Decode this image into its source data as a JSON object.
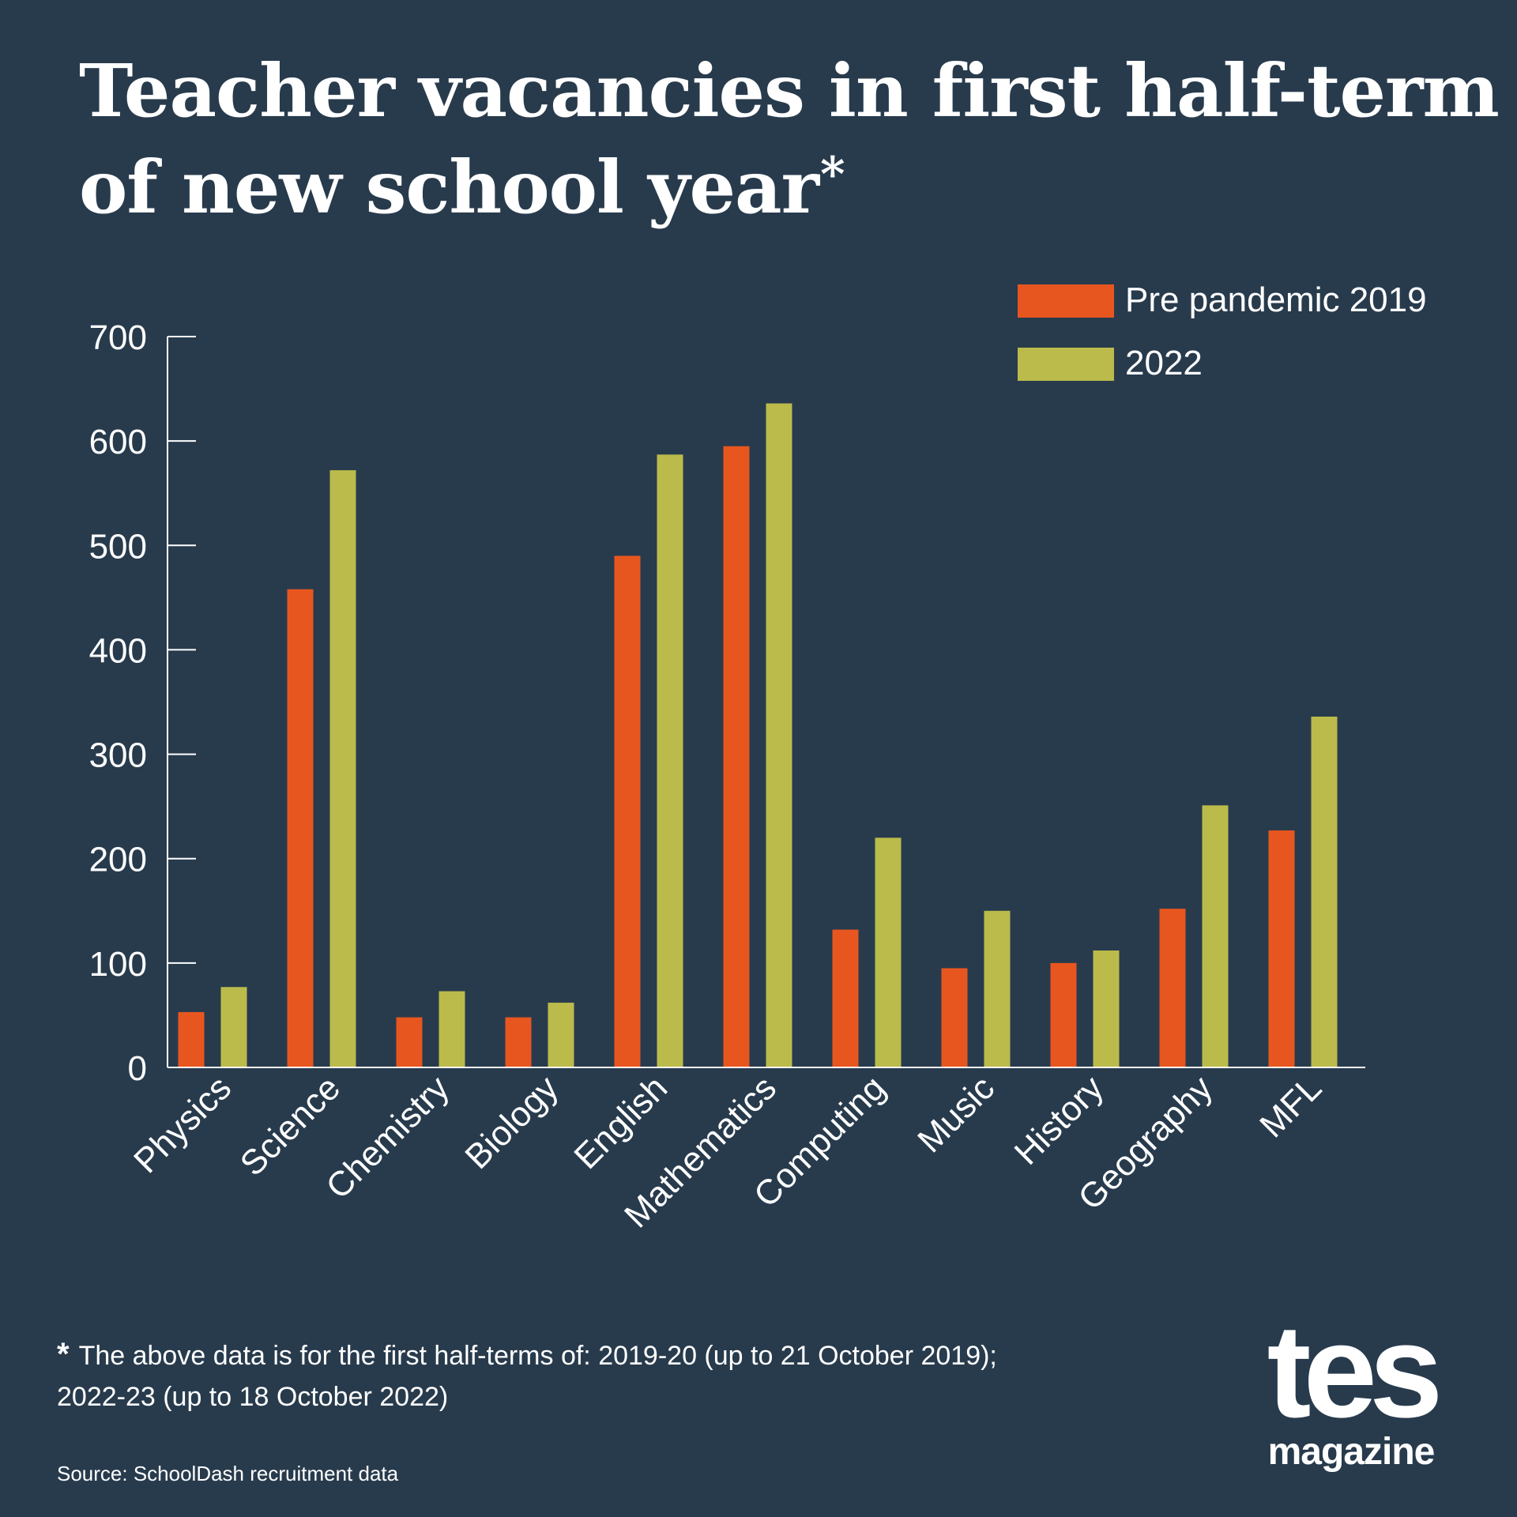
{
  "title_lines": [
    "Teacher vacancies in first half-term",
    "of new school year"
  ],
  "title_marker": "*",
  "footnote": {
    "marker": "*",
    "line1": "The above data is for the first half-terms of: 2019-20 (up to 21 October 2019);",
    "line2": "2022-23 (up to 18 October 2022)"
  },
  "source": "Source: SchoolDash recruitment data",
  "logo": {
    "main": "tes",
    "sub": "magazine"
  },
  "colors": {
    "background": "#283b4d",
    "series_2019": "#e8561f",
    "series_2022": "#bbbb4b"
  },
  "chart_data": {
    "type": "bar",
    "categories": [
      "Physics",
      "Science",
      "Chemistry",
      "Biology",
      "English",
      "Mathematics",
      "Computing",
      "Music",
      "History",
      "Geography",
      "MFL"
    ],
    "series": [
      {
        "name": "Pre pandemic 2019",
        "values": [
          53,
          458,
          48,
          48,
          490,
          595,
          132,
          95,
          100,
          152,
          227
        ]
      },
      {
        "name": "2022",
        "values": [
          77,
          572,
          73,
          62,
          587,
          636,
          220,
          150,
          112,
          251,
          336
        ]
      }
    ],
    "yticks": [
      0,
      100,
      200,
      300,
      400,
      500,
      600,
      700
    ],
    "ylim": [
      0,
      700
    ],
    "legend": "top-right",
    "grid": false
  }
}
